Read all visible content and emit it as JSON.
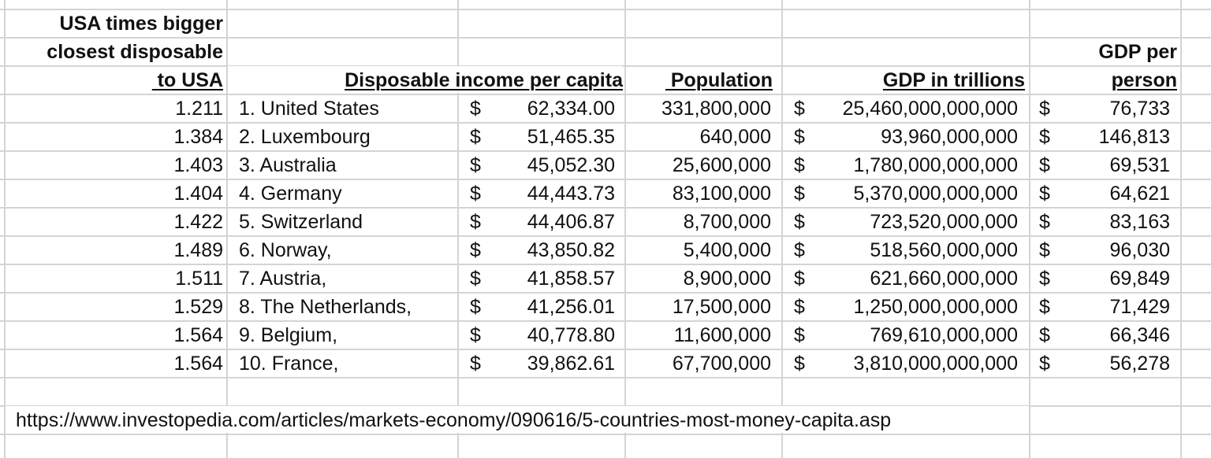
{
  "headers": {
    "col_a": [
      "USA times bigger",
      "closest disposable",
      " to USA"
    ],
    "disposable_income": "Disposable income per capita",
    "population": " Population",
    "gdp": "GDP in trillions",
    "gdp_per_person": [
      "GDP per",
      "person"
    ]
  },
  "currency_symbol": "$",
  "rows": [
    {
      "ratio": "1.211",
      "country": "1. United States",
      "income": "62,334.00",
      "population": "331,800,000",
      "gdp": "25,460,000,000,000",
      "gdp_pp": "76,733"
    },
    {
      "ratio": "1.384",
      "country": "2. Luxembourg",
      "income": "51,465.35",
      "population": "640,000",
      "gdp": "93,960,000,000",
      "gdp_pp": "146,813"
    },
    {
      "ratio": "1.403",
      "country": "3. Australia",
      "income": "45,052.30",
      "population": "25,600,000",
      "gdp": "1,780,000,000,000",
      "gdp_pp": "69,531"
    },
    {
      "ratio": "1.404",
      "country": "4. Germany",
      "income": "44,443.73",
      "population": "83,100,000",
      "gdp": "5,370,000,000,000",
      "gdp_pp": "64,621"
    },
    {
      "ratio": "1.422",
      "country": "5. Switzerland",
      "income": "44,406.87",
      "population": "8,700,000",
      "gdp": "723,520,000,000",
      "gdp_pp": "83,163"
    },
    {
      "ratio": "1.489",
      "country": "6. Norway,",
      "income": "43,850.82",
      "population": "5,400,000",
      "gdp": "518,560,000,000",
      "gdp_pp": "96,030"
    },
    {
      "ratio": "1.511",
      "country": "7. Austria,",
      "income": "41,858.57",
      "population": "8,900,000",
      "gdp": "621,660,000,000",
      "gdp_pp": "69,849"
    },
    {
      "ratio": "1.529",
      "country": "8. The Netherlands,",
      "income": "41,256.01",
      "population": "17,500,000",
      "gdp": "1,250,000,000,000",
      "gdp_pp": "71,429"
    },
    {
      "ratio": "1.564",
      "country": "9. Belgium,",
      "income": "40,778.80",
      "population": "11,600,000",
      "gdp": "769,610,000,000",
      "gdp_pp": "66,346"
    },
    {
      "ratio": "1.564",
      "country": "10. France,",
      "income": "39,862.61",
      "population": "67,700,000",
      "gdp": "3,810,000,000,000",
      "gdp_pp": "56,278"
    }
  ],
  "source_url": "https://www.investopedia.com/articles/markets-economy/090616/5-countries-most-money-capita.asp",
  "colors": {
    "gridline": "#d4d4d4",
    "text": "#111111",
    "background": "#ffffff"
  }
}
